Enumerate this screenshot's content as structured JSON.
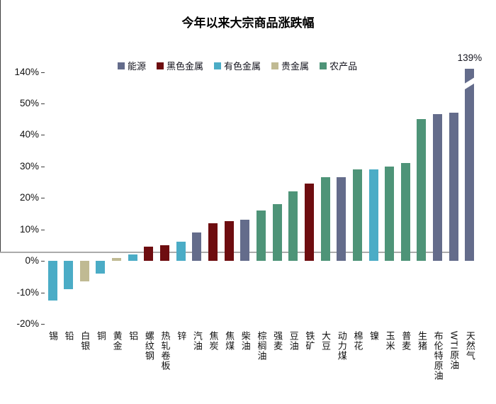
{
  "title": "今年以来大宗商品涨跌幅",
  "legend": [
    {
      "key": "energy",
      "label": "能源",
      "color": "#646C8B"
    },
    {
      "key": "ferrous-metals",
      "label": "黑色金属",
      "color": "#6E0D10"
    },
    {
      "key": "nonferrous-metals",
      "label": "有色金属",
      "color": "#4BACC6"
    },
    {
      "key": "precious-metals",
      "label": "贵金属",
      "color": "#C0BA93"
    },
    {
      "key": "agricultural",
      "label": "农产品",
      "color": "#4E9478"
    }
  ],
  "chart_data": {
    "type": "bar",
    "title": "今年以来大宗商品涨跌幅",
    "xlabel": "",
    "ylabel": "",
    "unit": "%",
    "grid": false,
    "legend_position": "top",
    "y_axis": {
      "tick_labels": [
        "140%",
        "50%",
        "40%",
        "30%",
        "20%",
        "10%",
        "0%",
        "-10%",
        "-20%"
      ],
      "tick_values": [
        140,
        50,
        40,
        30,
        20,
        10,
        0,
        -10,
        -20
      ],
      "axis_break_between": [
        50,
        140
      ]
    },
    "bars": [
      {
        "name": "锡",
        "group": "有色金属",
        "value": -12.5
      },
      {
        "name": "铅",
        "group": "有色金属",
        "value": -9
      },
      {
        "name": "白银",
        "group": "贵金属",
        "value": -6.5
      },
      {
        "name": "铜",
        "group": "有色金属",
        "value": -4
      },
      {
        "name": "黄金",
        "group": "贵金属",
        "value": 1
      },
      {
        "name": "铝",
        "group": "有色金属",
        "value": 2
      },
      {
        "name": "螺纹钢",
        "group": "黑色金属",
        "value": 4.5
      },
      {
        "name": "热轧卷板",
        "group": "黑色金属",
        "value": 5
      },
      {
        "name": "锌",
        "group": "有色金属",
        "value": 6
      },
      {
        "name": "汽油",
        "group": "能源",
        "value": 9
      },
      {
        "name": "焦炭",
        "group": "黑色金属",
        "value": 12
      },
      {
        "name": "焦煤",
        "group": "黑色金属",
        "value": 12.5
      },
      {
        "name": "柴油",
        "group": "能源",
        "value": 13
      },
      {
        "name": "棕榈油",
        "group": "农产品",
        "value": 16
      },
      {
        "name": "强麦",
        "group": "农产品",
        "value": 18
      },
      {
        "name": "豆油",
        "group": "农产品",
        "value": 22
      },
      {
        "name": "铁矿",
        "group": "黑色金属",
        "value": 24.5
      },
      {
        "name": "大豆",
        "group": "农产品",
        "value": 26.5
      },
      {
        "name": "动力煤",
        "group": "能源",
        "value": 26.5
      },
      {
        "name": "棉花",
        "group": "农产品",
        "value": 29
      },
      {
        "name": "镍",
        "group": "有色金属",
        "value": 29
      },
      {
        "name": "玉米",
        "group": "农产品",
        "value": 30
      },
      {
        "name": "普麦",
        "group": "农产品",
        "value": 31
      },
      {
        "name": "生猪",
        "group": "农产品",
        "value": 45
      },
      {
        "name": "布伦特原油",
        "group": "能源",
        "value": 46.5
      },
      {
        "name": "WTI原油",
        "group": "能源",
        "value": 47
      },
      {
        "name": "天然气",
        "group": "能源",
        "value": 139,
        "data_label": "139%",
        "axis_break": true
      }
    ]
  }
}
